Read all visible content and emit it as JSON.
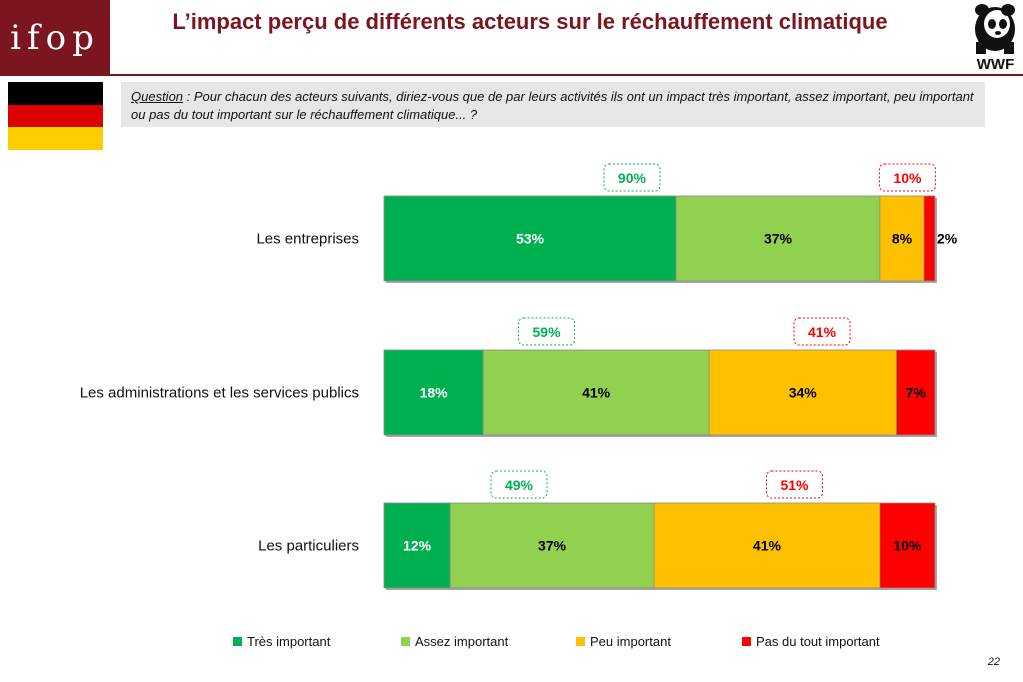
{
  "header": {
    "logo_text": "ifop",
    "title": "L’impact perçu de différents acteurs sur le réchauffement climatique",
    "partner_logo_text": "WWF",
    "header_color": "#7b1520"
  },
  "flag": {
    "country": "Germany",
    "colors": [
      "#000000",
      "#dd0000",
      "#ffce00"
    ]
  },
  "question": {
    "label": "Question",
    "text": " : Pour chacun des acteurs suivants, diriez-vous que de par leurs activités ils ont un impact très important, assez important, peu important ou pas du tout important sur le réchauffement climatique... ?"
  },
  "chart_data": {
    "type": "bar",
    "orientation": "horizontal",
    "stacked": true,
    "categories": [
      "Les entreprises",
      "Les administrations et les services publics",
      "Les particuliers"
    ],
    "series": [
      {
        "name": "Très important",
        "values": [
          53,
          18,
          12
        ],
        "color": "#00b050",
        "label_color": "#ffffff"
      },
      {
        "name": "Assez important",
        "values": [
          37,
          41,
          37
        ],
        "color": "#92d050",
        "label_color": "#000000"
      },
      {
        "name": "Peu important",
        "values": [
          8,
          34,
          41
        ],
        "color": "#ffc000",
        "label_color": "#000000"
      },
      {
        "name": "Pas du tout important",
        "values": [
          2,
          7,
          10
        ],
        "color": "#ff0000",
        "label_color": "#000000"
      }
    ],
    "value_suffix": "%",
    "totals": {
      "important": {
        "values": [
          "90%",
          "59%",
          "49%"
        ],
        "color": "#00b050"
      },
      "not_important": {
        "values": [
          "10%",
          "41%",
          "51%"
        ],
        "color": "#ff0000"
      }
    },
    "xlim": [
      0,
      100
    ],
    "legend_position": "bottom"
  },
  "page_number": "22"
}
